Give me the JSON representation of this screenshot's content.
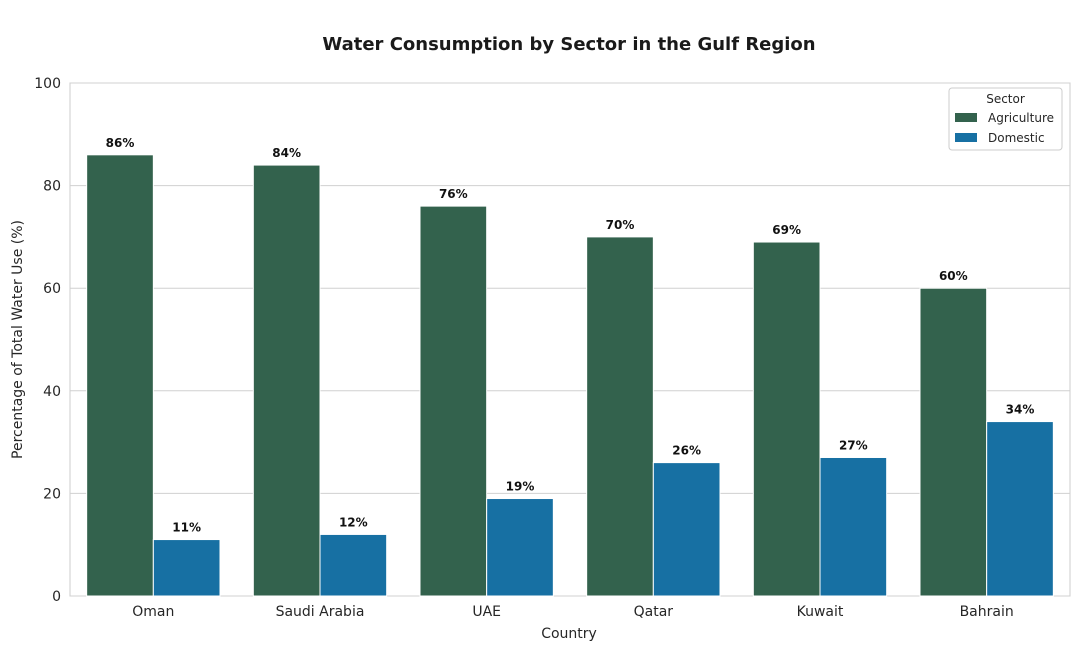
{
  "chart_data": {
    "type": "bar",
    "title": "Water Consumption by Sector in the Gulf Region",
    "xlabel": "Country",
    "ylabel": "Percentage of Total Water Use (%)",
    "ylim": [
      0,
      100
    ],
    "yticks": [
      0,
      20,
      40,
      60,
      80,
      100
    ],
    "grid": true,
    "categories": [
      "Oman",
      "Saudi Arabia",
      "UAE",
      "Qatar",
      "Kuwait",
      "Bahrain"
    ],
    "series": [
      {
        "name": "Agriculture",
        "values": [
          86,
          84,
          76,
          70,
          69,
          60
        ],
        "labels": [
          "86%",
          "84%",
          "76%",
          "70%",
          "69%",
          "60%"
        ],
        "color": "#33624d"
      },
      {
        "name": "Domestic",
        "values": [
          11,
          12,
          19,
          26,
          27,
          34
        ],
        "labels": [
          "11%",
          "12%",
          "19%",
          "26%",
          "27%",
          "34%"
        ],
        "color": "#1770a3"
      }
    ],
    "legend": {
      "title": "Sector",
      "position": "top-right"
    }
  }
}
